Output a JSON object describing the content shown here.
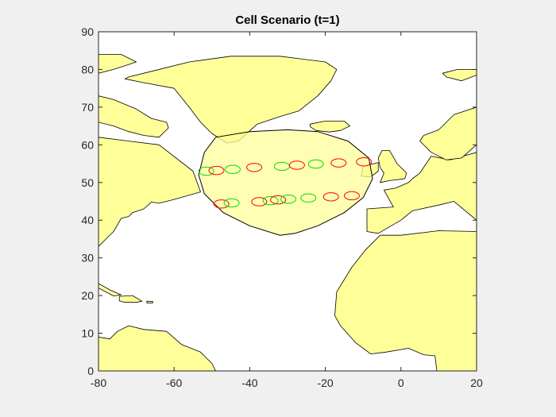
{
  "chart_data": {
    "type": "map-scatter",
    "title": "Cell Scenario (t=1)",
    "xlabel": "",
    "ylabel": "",
    "xlim": [
      -80,
      20
    ],
    "ylim": [
      0,
      90
    ],
    "xticks": [
      -80,
      -60,
      -40,
      -20,
      0,
      20
    ],
    "yticks": [
      0,
      10,
      20,
      30,
      40,
      50,
      60,
      70,
      80,
      90
    ],
    "grid": false,
    "colors": {
      "land": "#ffff99",
      "coverage": "#ffff99",
      "active_cell": "#ff0000",
      "idle_cell": "#00dd00",
      "figure_background": "#f0f0f0",
      "axes_background": "#ffffff"
    },
    "coverage_region": {
      "x": [
        -52,
        -53.5,
        -52,
        -47,
        -40,
        -32,
        -28,
        -22,
        -15,
        -10,
        -7.5,
        -8.5,
        -14,
        -22,
        -30,
        -40,
        -49,
        -52
      ],
      "y": [
        58,
        52,
        47,
        42,
        38.5,
        36,
        36.5,
        38.5,
        42,
        46,
        51,
        56.5,
        61,
        63.5,
        64,
        63.5,
        62,
        58
      ]
    },
    "cells": [
      {
        "lon": -51.5,
        "lat": 53.0,
        "state": "idle"
      },
      {
        "lon": -48.8,
        "lat": 53.2,
        "state": "active"
      },
      {
        "lon": -44.5,
        "lat": 53.5,
        "state": "idle"
      },
      {
        "lon": -38.8,
        "lat": 54.0,
        "state": "active"
      },
      {
        "lon": -31.5,
        "lat": 54.3,
        "state": "idle"
      },
      {
        "lon": -27.5,
        "lat": 54.6,
        "state": "active"
      },
      {
        "lon": -22.5,
        "lat": 54.9,
        "state": "idle"
      },
      {
        "lon": -16.5,
        "lat": 55.2,
        "state": "active"
      },
      {
        "lon": -9.8,
        "lat": 55.5,
        "state": "active"
      },
      {
        "lon": -47.5,
        "lat": 44.3,
        "state": "active"
      },
      {
        "lon": -44.8,
        "lat": 44.6,
        "state": "idle"
      },
      {
        "lon": -37.5,
        "lat": 44.9,
        "state": "active"
      },
      {
        "lon": -34.5,
        "lat": 45.2,
        "state": "idle"
      },
      {
        "lon": -32.5,
        "lat": 45.4,
        "state": "active"
      },
      {
        "lon": -29.8,
        "lat": 45.6,
        "state": "idle"
      },
      {
        "lon": -24.5,
        "lat": 45.9,
        "state": "idle"
      },
      {
        "lon": -18.5,
        "lat": 46.2,
        "state": "active"
      },
      {
        "lon": -13.0,
        "lat": 46.5,
        "state": "active"
      }
    ],
    "land_polygons": [
      {
        "name": "north-america",
        "lon": [
          -80,
          -72,
          -64,
          -55,
          -53,
          -60,
          -64,
          -66,
          -68,
          -71,
          -72,
          -74,
          -76,
          -78,
          -80
        ],
        "lat": [
          62,
          61,
          60,
          53,
          47.5,
          45.5,
          44.5,
          44.8,
          43,
          42,
          41,
          40.5,
          37,
          35,
          33
        ]
      },
      {
        "name": "baffin",
        "lon": [
          -80,
          -76,
          -70,
          -66,
          -62,
          -61.5,
          -64,
          -68,
          -72,
          -76,
          -80
        ],
        "lat": [
          73,
          72,
          69.5,
          67,
          66,
          64.5,
          62,
          62.5,
          63.5,
          65,
          66
        ]
      },
      {
        "name": "greenland",
        "lon": [
          -72,
          -66,
          -56,
          -45,
          -32,
          -20,
          -17,
          -18.5,
          -22,
          -27,
          -32,
          -38,
          -43,
          -46,
          -50,
          -53,
          -56,
          -60,
          -68,
          -73
        ],
        "lat": [
          78,
          79.5,
          82,
          83.5,
          83.5,
          82,
          80,
          77,
          73,
          69,
          67.5,
          65.5,
          61,
          60.5,
          63,
          66,
          70,
          75,
          76.5,
          77.5
        ]
      },
      {
        "name": "arctic-islands",
        "lon": [
          -80,
          -74,
          -70,
          -73,
          -76,
          -80
        ],
        "lat": [
          84,
          84,
          82,
          81,
          80,
          79
        ]
      },
      {
        "name": "iceland",
        "lon": [
          -24,
          -20,
          -15,
          -13.5,
          -16,
          -19,
          -22.5,
          -24
        ],
        "lat": [
          65.5,
          66.3,
          66.3,
          65,
          63.8,
          63.4,
          63.8,
          64.8
        ]
      },
      {
        "name": "svalbard",
        "lon": [
          11,
          15,
          20,
          20,
          16,
          12
        ],
        "lat": [
          79,
          80,
          80,
          78.5,
          77,
          78
        ]
      },
      {
        "name": "great-britain",
        "lon": [
          -5,
          -3,
          -1,
          1.5,
          1,
          -3,
          -5.5,
          -4.5,
          -5.5,
          -6,
          -5
        ],
        "lat": [
          58.5,
          58.5,
          55,
          52.5,
          51,
          50.5,
          50,
          52.5,
          54,
          56.5,
          58.5
        ]
      },
      {
        "name": "ireland",
        "lon": [
          -10,
          -6,
          -6,
          -8,
          -10.5,
          -10
        ],
        "lat": [
          54.3,
          55.3,
          53,
          51.5,
          51.7,
          54.3
        ]
      },
      {
        "name": "europe",
        "lon": [
          20,
          20,
          13,
          8,
          5,
          3,
          2,
          -1.5,
          -4.5,
          -2,
          -9,
          -9,
          -6,
          0,
          3,
          10,
          14,
          20
        ],
        "lat": [
          70,
          58,
          56,
          57,
          52.5,
          51,
          50,
          48.5,
          48,
          43.5,
          43,
          37,
          36.5,
          40,
          42.5,
          44,
          45,
          40
        ]
      },
      {
        "name": "scandinavia",
        "lon": [
          5,
          8,
          12,
          16,
          20,
          20,
          14,
          10,
          6,
          5
        ],
        "lat": [
          61,
          58,
          56,
          56.5,
          60,
          70,
          68,
          64,
          62.5,
          61
        ]
      },
      {
        "name": "africa",
        "lon": [
          -5.5,
          -9.5,
          -13,
          -17,
          -17.5,
          -16,
          -12,
          -8,
          -4,
          2,
          6,
          9,
          9.5,
          12,
          20,
          20,
          10,
          0
        ],
        "lat": [
          36,
          32,
          27.5,
          21,
          14.7,
          12,
          7.5,
          4.5,
          5,
          6,
          4.3,
          4,
          0,
          0,
          0,
          37,
          37.2,
          36
        ]
      },
      {
        "name": "south-america",
        "lon": [
          -80,
          -77,
          -75,
          -72,
          -68,
          -62,
          -58,
          -53,
          -50,
          -49,
          -48,
          -80
        ],
        "lat": [
          9,
          8.5,
          10.5,
          12,
          11,
          10.5,
          7,
          5,
          2,
          0,
          0,
          0
        ]
      },
      {
        "name": "cuba",
        "lon": [
          -80,
          -77,
          -74,
          -76,
          -80
        ],
        "lat": [
          23.2,
          21.5,
          20.2,
          19.9,
          22
        ]
      },
      {
        "name": "hispaniola",
        "lon": [
          -74.5,
          -71,
          -68.5,
          -70,
          -73,
          -74.5
        ],
        "lat": [
          19.8,
          20,
          18.5,
          18.2,
          18.2,
          18.6
        ]
      },
      {
        "name": "puerto-rico",
        "lon": [
          -67.2,
          -65.6,
          -65.7,
          -67.2
        ],
        "lat": [
          18.5,
          18.4,
          18,
          18
        ]
      }
    ]
  }
}
